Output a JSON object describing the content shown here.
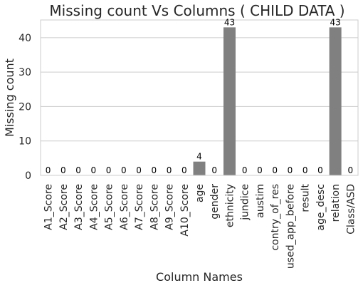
{
  "chart_data": {
    "type": "bar",
    "title": "Missing count Vs Columns ( CHILD DATA )",
    "xlabel": "Column Names",
    "ylabel": "Missing count",
    "categories": [
      "A1_Score",
      "A2_Score",
      "A3_Score",
      "A4_Score",
      "A5_Score",
      "A6_Score",
      "A7_Score",
      "A8_Score",
      "A9_Score",
      "A10_Score",
      "age",
      "gender",
      "ethnicity",
      "jundice",
      "austim",
      "contry_of_res",
      "used_app_before",
      "result",
      "age_desc",
      "relation",
      "Class/ASD"
    ],
    "values": [
      0,
      0,
      0,
      0,
      0,
      0,
      0,
      0,
      0,
      0,
      4,
      0,
      43,
      0,
      0,
      0,
      0,
      0,
      0,
      43,
      0
    ],
    "data_labels": [
      "0",
      "0",
      "0",
      "0",
      "0",
      "0",
      "0",
      "0",
      "0",
      "0",
      "4",
      "0",
      "43",
      "0",
      "0",
      "0",
      "0",
      "0",
      "0",
      "43",
      "0"
    ],
    "ylim": [
      0,
      45.15
    ],
    "yticks": [
      0,
      10,
      20,
      30,
      40
    ],
    "ytick_labels": [
      "0",
      "10",
      "20",
      "30",
      "40"
    ],
    "grid": true,
    "bar_color": "#808080",
    "grid_color": "#cccccc",
    "axes_border_color": "#cccccc"
  }
}
